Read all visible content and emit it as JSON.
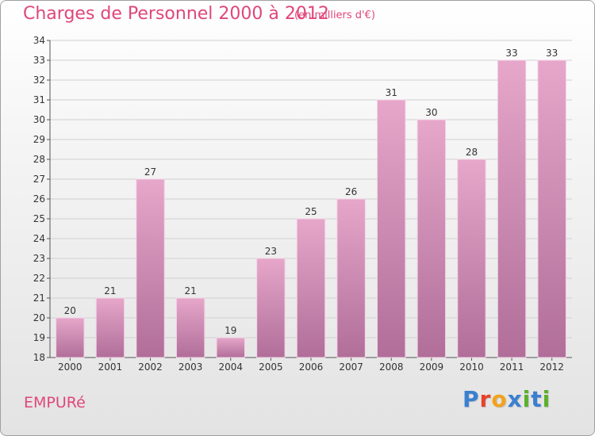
{
  "header": {
    "title": "Charges de Personnel 2000 à 2012",
    "subtitle": "(en milliers d'€)"
  },
  "footer": {
    "commune": "EMPURé",
    "logo_letters": [
      "P",
      "r",
      "o",
      "x",
      "i",
      "t",
      "i"
    ],
    "logo_colors": [
      "#3a7fd0",
      "#e8402a",
      "#f2a21b",
      "#3a7fd0",
      "#5cb02c",
      "#3a7fd0",
      "#5cb02c"
    ]
  },
  "colors": {
    "title": "#e0467a",
    "bar_top": "#e6a7ca",
    "bar_bottom": "#b06e99"
  },
  "chart_data": {
    "type": "bar",
    "title": "Charges de Personnel 2000 à 2012",
    "subtitle": "(en milliers d'€)",
    "categories": [
      "2000",
      "2001",
      "2002",
      "2003",
      "2004",
      "2005",
      "2006",
      "2007",
      "2008",
      "2009",
      "2010",
      "2011",
      "2012"
    ],
    "values": [
      20,
      21,
      27,
      21,
      19,
      23,
      25,
      26,
      31,
      30,
      28,
      33,
      33
    ],
    "ylim": [
      18,
      34
    ],
    "yticks": [
      18,
      19,
      20,
      21,
      22,
      23,
      24,
      25,
      26,
      27,
      28,
      29,
      30,
      31,
      32,
      33,
      34
    ],
    "grid": true
  }
}
